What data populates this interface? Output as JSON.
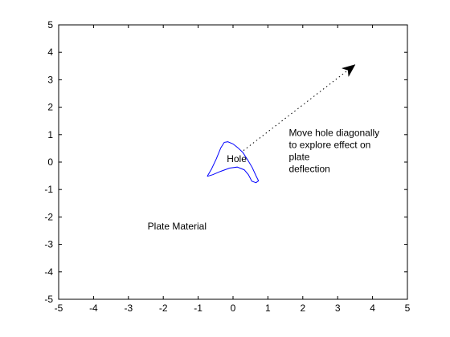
{
  "figure": {
    "background": "#ffffff",
    "axes_color": "#000000",
    "curve_color": "#0000ff",
    "arrow_color": "#000000"
  },
  "chart_data": {
    "type": "line",
    "title": "",
    "xlabel": "",
    "ylabel": "",
    "xlim": [
      -5,
      5
    ],
    "ylim": [
      -5,
      5
    ],
    "grid": false,
    "x_ticks": [
      -5,
      -4,
      -3,
      -2,
      -1,
      0,
      1,
      2,
      3,
      4,
      5
    ],
    "y_ticks": [
      -5,
      -4,
      -3,
      -2,
      -1,
      0,
      1,
      2,
      3,
      4,
      5
    ],
    "x_tick_labels": [
      "-5",
      "-4",
      "-3",
      "-2",
      "-1",
      "0",
      "1",
      "2",
      "3",
      "4",
      "5"
    ],
    "y_tick_labels": [
      "-5",
      "-4",
      "-3",
      "-2",
      "-1",
      "0",
      "1",
      "2",
      "3",
      "4",
      "5"
    ],
    "series": [
      {
        "style": "solid",
        "color": "#0000ff",
        "points": [
          [
            -0.74,
            -0.52
          ],
          [
            -0.62,
            -0.26
          ],
          [
            -0.48,
            0.12
          ],
          [
            -0.35,
            0.52
          ],
          [
            -0.25,
            0.72
          ],
          [
            -0.15,
            0.74
          ],
          [
            0.0,
            0.66
          ],
          [
            0.14,
            0.52
          ],
          [
            0.28,
            0.35
          ],
          [
            0.42,
            0.08
          ],
          [
            0.55,
            -0.2
          ],
          [
            0.66,
            -0.5
          ],
          [
            0.73,
            -0.68
          ],
          [
            0.66,
            -0.75
          ],
          [
            0.54,
            -0.7
          ],
          [
            0.44,
            -0.46
          ],
          [
            0.32,
            -0.28
          ],
          [
            0.12,
            -0.18
          ],
          [
            -0.1,
            -0.22
          ],
          [
            -0.36,
            -0.34
          ],
          [
            -0.58,
            -0.46
          ],
          [
            -0.74,
            -0.52
          ]
        ]
      },
      {
        "style": "dotted",
        "color": "#000000",
        "points": [
          [
            0.3,
            0.42
          ],
          [
            3.5,
            3.55
          ]
        ]
      }
    ],
    "arrowhead": {
      "tip": [
        3.5,
        3.55
      ],
      "from": [
        3.22,
        3.27
      ]
    },
    "annotations": [
      {
        "id": "hole",
        "text": "Hole",
        "x": -0.18,
        "y": 0.0
      },
      {
        "id": "plate",
        "text": "Plate Material",
        "x": -2.45,
        "y": -2.45
      },
      {
        "id": "move",
        "lines": [
          "Move hole diagonally",
          "to explore effect on",
          "plate",
          "deflection"
        ],
        "x": 1.6,
        "y": 0.95
      }
    ]
  }
}
